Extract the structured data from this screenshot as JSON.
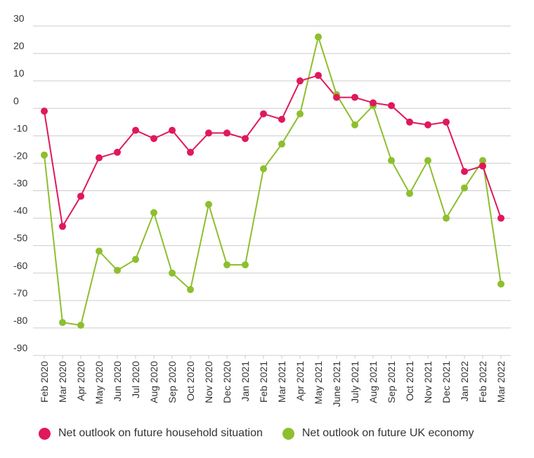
{
  "chart_data": {
    "type": "line",
    "title": "",
    "xlabel": "",
    "ylabel": "",
    "ylim": [
      -90,
      30
    ],
    "yticks": [
      30,
      20,
      10,
      0,
      -10,
      -20,
      -30,
      -40,
      -50,
      -60,
      -70,
      -80,
      -90
    ],
    "grid": true,
    "legend_position": "bottom",
    "categories": [
      "Feb 2020",
      "Mar 2020",
      "Apr 2020",
      "May 2020",
      "Jun 2020",
      "Jul 2020",
      "Aug 2020",
      "Sep 2020",
      "Oct 2020",
      "Nov 2020",
      "Dec 2020",
      "Jan 2021",
      "Feb 2021",
      "Mar 2021",
      "Apr 2021",
      "May 2021",
      "June 2021",
      "July 2021",
      "Aug 2021",
      "Sep 2021",
      "Oct 2021",
      "Nov 2021",
      "Dec 2021",
      "Jan 2022",
      "Feb 2022",
      "Mar 2022"
    ],
    "series": [
      {
        "name": "Net outlook on future household situation",
        "color": "#e0185c",
        "values": [
          -1,
          -43,
          -32,
          -18,
          -16,
          -8,
          -11,
          -8,
          -16,
          -9,
          -9,
          -11,
          -2,
          -4,
          10,
          12,
          4,
          4,
          2,
          1,
          -5,
          -6,
          -5,
          -23,
          -21,
          -40
        ]
      },
      {
        "name": "Net outlook on future UK economy",
        "color": "#8dbf2e",
        "values": [
          -17,
          -78,
          -79,
          -52,
          -59,
          -55,
          -38,
          -60,
          -66,
          -35,
          -57,
          -57,
          -22,
          -13,
          -2,
          26,
          5,
          -6,
          1,
          -19,
          -31,
          -19,
          -40,
          -29,
          -19,
          -64
        ]
      }
    ]
  }
}
